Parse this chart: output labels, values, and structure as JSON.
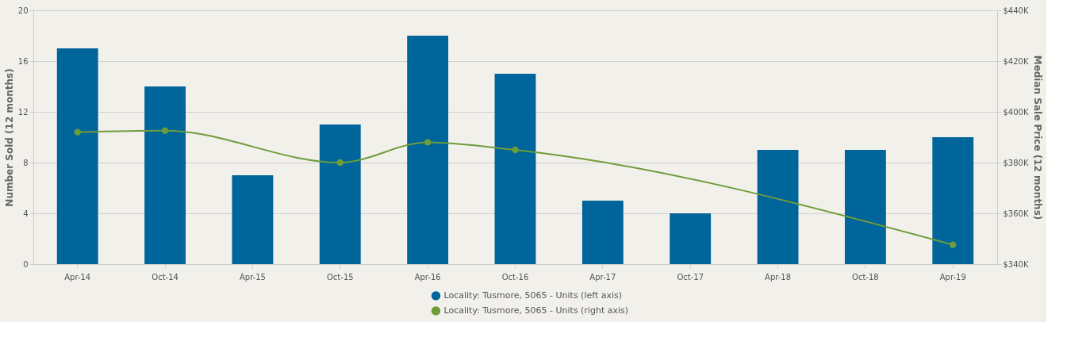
{
  "chart_data": {
    "type": "bar",
    "categories": [
      "Apr-14",
      "Oct-14",
      "Apr-15",
      "Oct-15",
      "Apr-16",
      "Oct-16",
      "Apr-17",
      "Oct-17",
      "Apr-18",
      "Oct-18",
      "Apr-19"
    ],
    "series": [
      {
        "name": "Locality: Tusmore, 5065 - Units (left axis)",
        "color": "#00659a",
        "values": [
          17,
          14,
          7,
          11,
          18,
          15,
          5,
          4,
          9,
          9,
          10
        ]
      },
      {
        "name": "Locality: Tusmore, 5065 - Units (right axis)",
        "type": "line",
        "axis": "y2",
        "color": "#6f9c3a",
        "values": [
          392000,
          392600,
          null,
          380000,
          388000,
          385000,
          null,
          null,
          null,
          null,
          347600
        ]
      }
    ],
    "ylabel": "Number Sold (12 months)",
    "y2label": "Median Sale Price (12 months)",
    "ylim": [
      0,
      20
    ],
    "yticks": [
      0,
      4,
      8,
      12,
      16,
      20
    ],
    "y2lim": [
      340000,
      440000
    ],
    "y2ticks": [
      {
        "value": 340000,
        "label": "$340K"
      },
      {
        "value": 360000,
        "label": "$360K"
      },
      {
        "value": 380000,
        "label": "$380K"
      },
      {
        "value": 400000,
        "label": "$400K"
      },
      {
        "value": 420000,
        "label": "$420K"
      },
      {
        "value": 440000,
        "label": "$440K"
      }
    ],
    "grid": "y",
    "legend": "bottom",
    "marker": "circle",
    "line_style": "solid"
  }
}
